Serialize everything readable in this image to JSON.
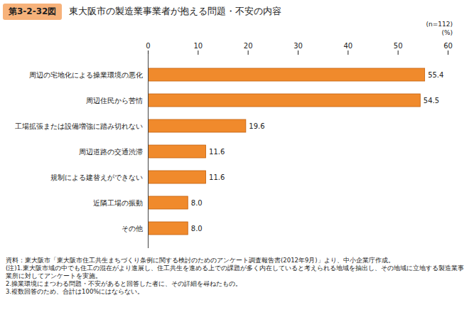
{
  "chart_data": {
    "type": "bar",
    "orientation": "horizontal",
    "figure_label": "第3-2-32図",
    "title": "東大阪市の製造業事業者が抱える問題・不安の内容",
    "annotations": [
      "(n=112)"
    ],
    "xlabel": "(%)",
    "categories": [
      "周辺の宅地化による操業環境の悪化",
      "周辺住民から苦情",
      "工場拡張または設備増強に踏み切れない",
      "周辺道路の交通渋滞",
      "規制による建替えができない",
      "近隣工場の振動",
      "その他"
    ],
    "values": [
      55.4,
      54.5,
      19.6,
      11.6,
      11.6,
      8.0,
      8.0
    ],
    "value_labels": [
      "55.4",
      "54.5",
      "19.6",
      "11.6",
      "11.6",
      "8.0",
      "8.0"
    ],
    "data_labels": true,
    "color": "#f08a2c",
    "xlim": [
      0,
      60
    ],
    "xticks": [
      0,
      10,
      20,
      30,
      40,
      50,
      60
    ],
    "grid": false,
    "source": "資料：東大阪市「東大阪市住工共生まちづくり条例に関する検討のためのアンケート調査報告書(2012年9月)」より、中小企業庁作成。",
    "notes": [
      "(注)1.東大阪市域の中でも住工の混在がより進展し、住工共生を進める上での課題が多く内在していると考えられる地域を抽出し、その地域に立地する製造業事業所に対してアンケートを実施。",
      "2.操業環境にまつわる問題・不安があると回答した者に、その詳細を尋ねたもの。",
      "3.複数回答のため、合計は100%にはならない。"
    ]
  }
}
